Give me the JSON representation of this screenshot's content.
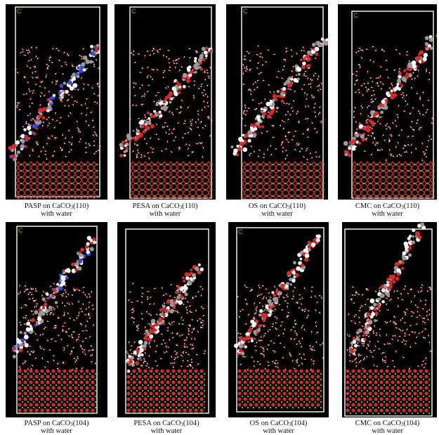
{
  "figure": {
    "panels": [
      {
        "id": "pasp-110",
        "caption_pre": "PASP on CaCO",
        "caption_sub": "3",
        "caption_post": "(110)",
        "caption_line2": "with water",
        "polymer": "PASP",
        "surface": "110",
        "corner_label": "C"
      },
      {
        "id": "pesa-110",
        "caption_pre": "PESA on CaCO",
        "caption_sub": "3",
        "caption_post": "(110)",
        "caption_line2": "with water",
        "polymer": "PESA",
        "surface": "110",
        "corner_label": "C"
      },
      {
        "id": "os-110",
        "caption_pre": "OS on CaCO",
        "caption_sub": "3",
        "caption_post": "(110)",
        "caption_line2": "with water",
        "polymer": "OS",
        "surface": "110",
        "corner_label": "C"
      },
      {
        "id": "cmc-110",
        "caption_pre": "CMC on CaCO",
        "caption_sub": "3",
        "caption_post": "(110)",
        "caption_line2": "with water",
        "polymer": "CMC",
        "surface": "110",
        "corner_label": "C"
      },
      {
        "id": "pasp-104",
        "caption_pre": "PASP on CaCO",
        "caption_sub": "3",
        "caption_post": "(104)",
        "caption_line2": "with water",
        "polymer": "PASP",
        "surface": "104",
        "corner_label": "C"
      },
      {
        "id": "pesa-104",
        "caption_pre": "PESA on CaCO",
        "caption_sub": "3",
        "caption_post": "(104)",
        "caption_line2": "with water",
        "polymer": "PESA",
        "surface": "104",
        "corner_label": ""
      },
      {
        "id": "os-104",
        "caption_pre": "OS on CaCO",
        "caption_sub": "3",
        "caption_post": "(104)",
        "caption_line2": "with water",
        "polymer": "OS",
        "surface": "104",
        "corner_label": "C"
      },
      {
        "id": "cmc-104",
        "caption_pre": "CMC on CaCO",
        "caption_sub": "3",
        "caption_post": "(104)",
        "caption_line2": "with water",
        "polymer": "CMC",
        "surface": "104",
        "corner_label": ""
      }
    ]
  },
  "colors": {
    "background": "#000000",
    "cell_border": "#ffffff",
    "oxygen": "#d42a2a",
    "hydrogen": "#ffffff",
    "carbon": "#9a9a9a",
    "nitrogen": "#3a4ad8",
    "calcium": "#3cd23c",
    "axis_label": "#2fd02f"
  }
}
